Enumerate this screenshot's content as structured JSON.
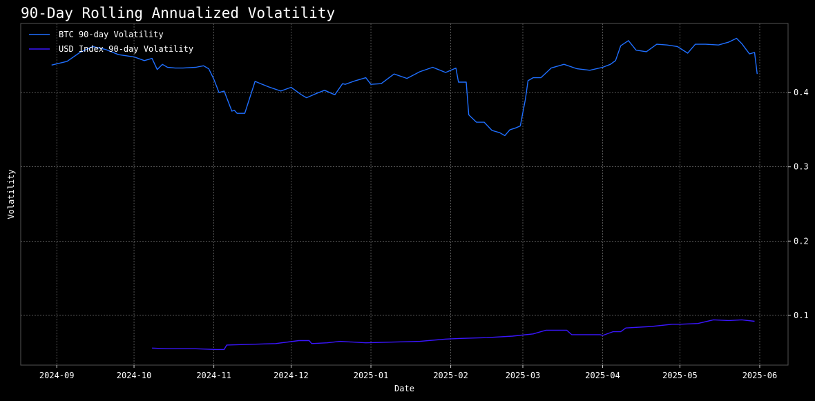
{
  "chart_data": {
    "type": "line",
    "title": "90-Day Rolling Annualized Volatility",
    "xlabel": "Date",
    "ylabel": "Volatility",
    "grid": true,
    "legend_position": "top-left",
    "y_axis_side": "right",
    "xlim": [
      "2024-08-18",
      "2025-06-12"
    ],
    "ylim": [
      0.033,
      0.493
    ],
    "x_ticks": [
      "2024-09-01",
      "2024-10-01",
      "2024-11-01",
      "2024-12-01",
      "2025-01-01",
      "2025-02-01",
      "2025-03-01",
      "2025-04-01",
      "2025-05-01",
      "2025-06-01"
    ],
    "x_tick_labels": [
      "2024-09",
      "2024-10",
      "2024-11",
      "2024-12",
      "2025-01",
      "2025-02",
      "2025-03",
      "2025-04",
      "2025-05",
      "2025-06"
    ],
    "y_ticks": [
      0.1,
      0.2,
      0.3,
      0.4
    ],
    "y_tick_labels": [
      "0.1",
      "0.2",
      "0.3",
      "0.4"
    ],
    "series": [
      {
        "name": "BTC 90-day Volatility",
        "color": "#1f6fff",
        "x": [
          "2024-08-30",
          "2024-09-05",
          "2024-09-10",
          "2024-09-15",
          "2024-09-20",
          "2024-09-25",
          "2024-10-01",
          "2024-10-05",
          "2024-10-08",
          "2024-10-10",
          "2024-10-12",
          "2024-10-14",
          "2024-10-17",
          "2024-10-20",
          "2024-10-25",
          "2024-10-28",
          "2024-10-30",
          "2024-11-01",
          "2024-11-03",
          "2024-11-05",
          "2024-11-08",
          "2024-11-09",
          "2024-11-10",
          "2024-11-12",
          "2024-11-13",
          "2024-11-17",
          "2024-11-22",
          "2024-11-27",
          "2024-12-01",
          "2024-12-05",
          "2024-12-07",
          "2024-12-09",
          "2024-12-11",
          "2024-12-14",
          "2024-12-18",
          "2024-12-21",
          "2024-12-22",
          "2024-12-26",
          "2024-12-30",
          "2025-01-01",
          "2025-01-05",
          "2025-01-10",
          "2025-01-15",
          "2025-01-20",
          "2025-01-25",
          "2025-01-30",
          "2025-02-03",
          "2025-02-04",
          "2025-02-07",
          "2025-02-08",
          "2025-02-11",
          "2025-02-14",
          "2025-02-17",
          "2025-02-20",
          "2025-02-22",
          "2025-02-23",
          "2025-02-24",
          "2025-02-26",
          "2025-02-28",
          "2025-03-02",
          "2025-03-03",
          "2025-03-05",
          "2025-03-08",
          "2025-03-12",
          "2025-03-17",
          "2025-03-22",
          "2025-03-27",
          "2025-04-01",
          "2025-04-04",
          "2025-04-06",
          "2025-04-08",
          "2025-04-11",
          "2025-04-14",
          "2025-04-18",
          "2025-04-22",
          "2025-04-26",
          "2025-04-30",
          "2025-05-04",
          "2025-05-07",
          "2025-05-11",
          "2025-05-16",
          "2025-05-20",
          "2025-05-23",
          "2025-05-25",
          "2025-05-28",
          "2025-05-30",
          "2025-05-31"
        ],
        "values": [
          0.437,
          0.442,
          0.454,
          0.462,
          0.458,
          0.451,
          0.448,
          0.443,
          0.446,
          0.431,
          0.438,
          0.434,
          0.433,
          0.433,
          0.434,
          0.436,
          0.432,
          0.418,
          0.4,
          0.402,
          0.375,
          0.376,
          0.372,
          0.372,
          0.372,
          0.415,
          0.408,
          0.402,
          0.407,
          0.397,
          0.393,
          0.396,
          0.399,
          0.403,
          0.397,
          0.412,
          0.411,
          0.416,
          0.42,
          0.411,
          0.412,
          0.425,
          0.419,
          0.428,
          0.434,
          0.427,
          0.433,
          0.414,
          0.414,
          0.37,
          0.36,
          0.36,
          0.349,
          0.346,
          0.342,
          0.346,
          0.35,
          0.352,
          0.355,
          0.391,
          0.416,
          0.42,
          0.42,
          0.433,
          0.438,
          0.432,
          0.43,
          0.434,
          0.438,
          0.443,
          0.463,
          0.47,
          0.457,
          0.455,
          0.465,
          0.464,
          0.462,
          0.453,
          0.465,
          0.465,
          0.464,
          0.468,
          0.473,
          0.466,
          0.452,
          0.454,
          0.425
        ]
      },
      {
        "name": "USD Index 90-day Volatility",
        "color": "#3a16ff",
        "x": [
          "2024-10-08",
          "2024-10-14",
          "2024-10-18",
          "2024-10-25",
          "2024-11-02",
          "2024-11-05",
          "2024-11-06",
          "2024-11-15",
          "2024-11-25",
          "2024-12-04",
          "2024-12-08",
          "2024-12-09",
          "2024-12-15",
          "2024-12-20",
          "2024-12-30",
          "2025-01-10",
          "2025-01-20",
          "2025-01-30",
          "2025-02-05",
          "2025-02-15",
          "2025-02-25",
          "2025-03-05",
          "2025-03-08",
          "2025-03-10",
          "2025-03-18",
          "2025-03-20",
          "2025-03-31",
          "2025-04-01",
          "2025-04-05",
          "2025-04-08",
          "2025-04-10",
          "2025-04-20",
          "2025-04-28",
          "2025-05-01",
          "2025-05-08",
          "2025-05-14",
          "2025-05-20",
          "2025-05-25",
          "2025-05-30"
        ],
        "values": [
          0.056,
          0.055,
          0.055,
          0.055,
          0.054,
          0.054,
          0.06,
          0.061,
          0.062,
          0.066,
          0.066,
          0.062,
          0.063,
          0.065,
          0.063,
          0.064,
          0.065,
          0.068,
          0.069,
          0.07,
          0.072,
          0.075,
          0.078,
          0.08,
          0.08,
          0.074,
          0.074,
          0.073,
          0.078,
          0.078,
          0.083,
          0.085,
          0.088,
          0.088,
          0.089,
          0.094,
          0.093,
          0.094,
          0.092
        ]
      }
    ]
  }
}
